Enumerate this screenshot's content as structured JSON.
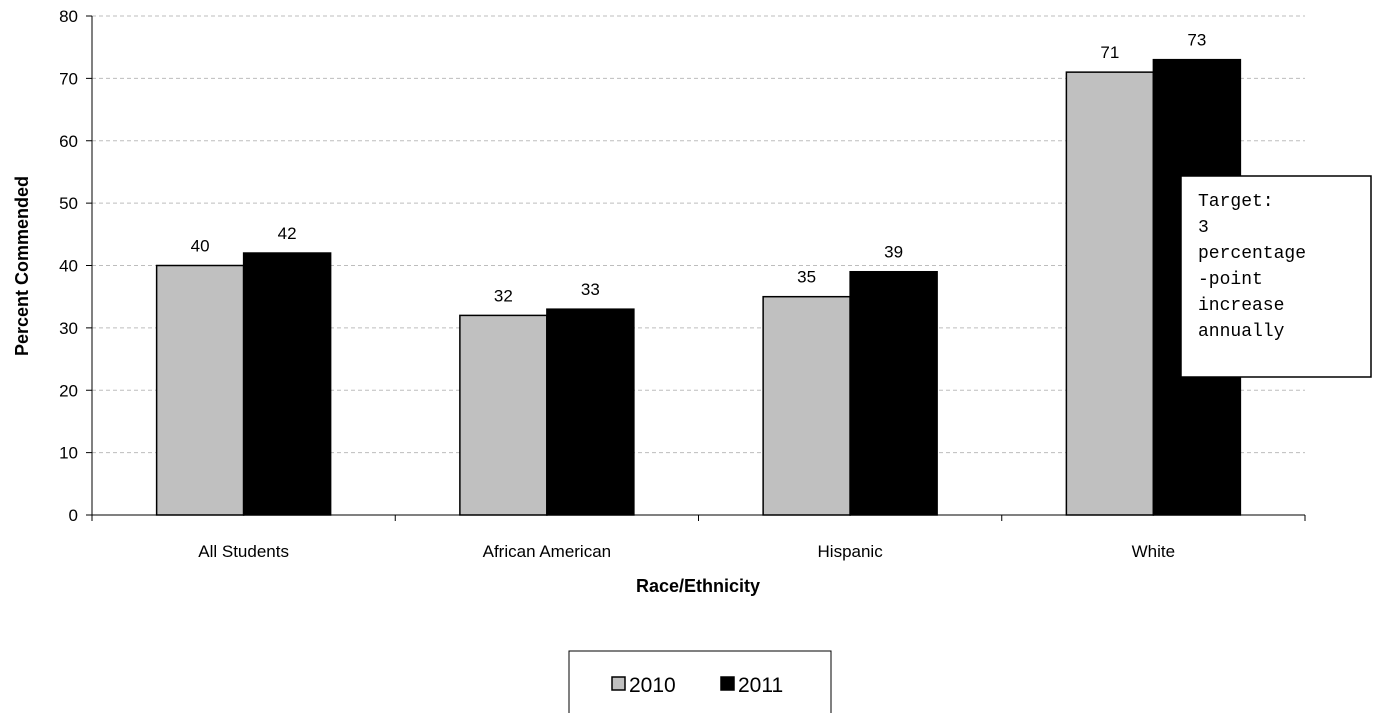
{
  "chart_data": {
    "type": "bar",
    "categories": [
      "All Students",
      "African American",
      "Hispanic",
      "White"
    ],
    "series": [
      {
        "name": "2010",
        "values": [
          40,
          32,
          35,
          71
        ],
        "color": "#c0c0c0"
      },
      {
        "name": "2011",
        "values": [
          42,
          33,
          39,
          73
        ],
        "color": "#000000"
      }
    ],
    "xlabel": "Race/Ethnicity",
    "ylabel": "Percent Commended",
    "ylim": [
      0,
      80
    ],
    "yticks": [
      0,
      10,
      20,
      30,
      40,
      50,
      60,
      70,
      80
    ],
    "grid": true,
    "data_labels": true,
    "legend_position": "bottom",
    "annotation": {
      "lines": [
        "Target:",
        "3",
        "percentage",
        "-point",
        "increase",
        "annually"
      ]
    }
  }
}
